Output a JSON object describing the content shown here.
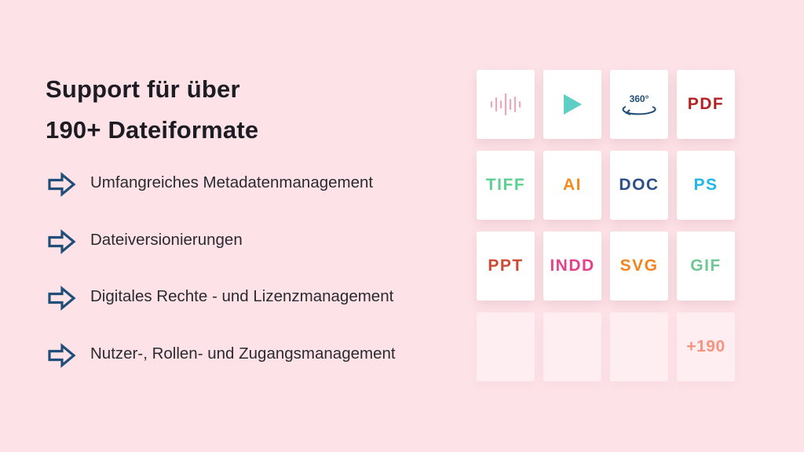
{
  "headline": {
    "line1": "Support für über",
    "line2": "190+ Dateiformate"
  },
  "features": [
    {
      "label": "Umfangreiches Metadatenmanagement",
      "icon": "arrow-right-icon"
    },
    {
      "label": "Dateiversionierungen",
      "icon": "arrow-right-icon"
    },
    {
      "label": "Digitales Rechte - und Lizenzmanagement",
      "icon": "arrow-right-icon"
    },
    {
      "label": "Nutzer-, Rollen- und Zugangsmanagement",
      "icon": "arrow-right-icon"
    }
  ],
  "colors": {
    "background": "#fde3e8",
    "arrow": "#1f4e79",
    "audio": "#f2a7b6",
    "video": "#5ecfc4",
    "view360": "#1f4e79",
    "pdf": "#b22222",
    "tiff": "#5ccf92",
    "ai": "#f58a1f",
    "doc": "#2c4e8a",
    "ps": "#22b7e8",
    "ppt": "#cf4a35",
    "indd": "#e4418a",
    "svg": "#f28420",
    "gif": "#6dc795",
    "more": "#f5957e"
  },
  "formats": {
    "row1": [
      {
        "icon": "audio-wave-icon"
      },
      {
        "icon": "play-icon"
      },
      {
        "icon": "rotate-360-icon",
        "text": "360°"
      },
      {
        "text": "PDF"
      }
    ],
    "row2": [
      {
        "text": "TIFF"
      },
      {
        "text": "AI"
      },
      {
        "text": "DOC"
      },
      {
        "text": "PS"
      }
    ],
    "row3": [
      {
        "text": "PPT"
      },
      {
        "text": "INDD"
      },
      {
        "text": "SVG"
      },
      {
        "text": "GIF"
      }
    ],
    "row4": [
      {
        "text": ""
      },
      {
        "text": ""
      },
      {
        "text": ""
      },
      {
        "text": "+190"
      }
    ]
  }
}
